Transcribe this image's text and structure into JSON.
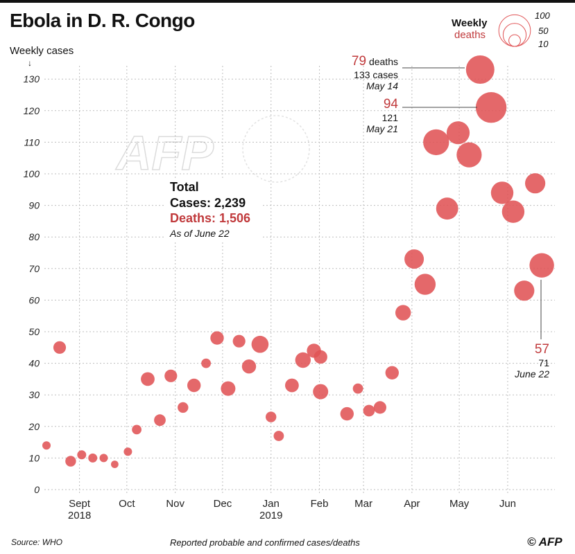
{
  "title": "Ebola in D. R. Congo",
  "legend": {
    "title_line1": "Weekly",
    "title_line2": "deaths",
    "sizes": [
      "100",
      "50",
      "10"
    ],
    "bubble_color": "#e05355"
  },
  "totals": {
    "heading": "Total",
    "cases": "Cases: 2,239",
    "deaths": "Deaths: 1,506",
    "asof": "As of June 22"
  },
  "annotations": {
    "may14": {
      "big": "79",
      "big_suffix": " deaths",
      "cases": "133 cases",
      "date": "May 14"
    },
    "may21": {
      "big": "94",
      "cases": "121",
      "date": "May 21"
    },
    "june22": {
      "big": "57",
      "cases": "71",
      "date": "June 22"
    }
  },
  "footer": {
    "source": "Source: WHO",
    "note": "Reported probable and confirmed cases/deaths",
    "logo": "© AFP"
  },
  "watermark": "AFP",
  "chart_data": {
    "type": "scatter",
    "ylabel": "Weekly cases",
    "ylim": [
      0,
      130
    ],
    "yticks": [
      0,
      10,
      20,
      30,
      40,
      50,
      60,
      70,
      80,
      90,
      100,
      110,
      120,
      130
    ],
    "grid": true,
    "x_ticks": [
      {
        "label": "Sept",
        "sub": "2018",
        "week": 3
      },
      {
        "label": "Oct",
        "sub": "",
        "week": 7.3
      },
      {
        "label": "Nov",
        "sub": "",
        "week": 11.7
      },
      {
        "label": "Dec",
        "sub": "",
        "week": 16
      },
      {
        "label": "Jan",
        "sub": "2019",
        "week": 20.4
      },
      {
        "label": "Feb",
        "sub": "",
        "week": 24.8
      },
      {
        "label": "Mar",
        "sub": "",
        "week": 28.8
      },
      {
        "label": "Apr",
        "sub": "",
        "week": 33.2
      },
      {
        "label": "May",
        "sub": "",
        "week": 37.5
      },
      {
        "label": "Jun",
        "sub": "",
        "week": 41.9
      }
    ],
    "points": [
      {
        "week": 0,
        "cases": 14,
        "deaths": 4
      },
      {
        "week": 1.2,
        "cases": 45,
        "deaths": 12
      },
      {
        "week": 2.2,
        "cases": 9,
        "deaths": 8
      },
      {
        "week": 3.2,
        "cases": 11,
        "deaths": 5
      },
      {
        "week": 4.2,
        "cases": 10,
        "deaths": 5
      },
      {
        "week": 5.2,
        "cases": 10,
        "deaths": 4
      },
      {
        "week": 6.2,
        "cases": 8,
        "deaths": 3
      },
      {
        "week": 7.4,
        "cases": 12,
        "deaths": 4
      },
      {
        "week": 8.2,
        "cases": 19,
        "deaths": 6
      },
      {
        "week": 9.2,
        "cases": 35,
        "deaths": 15
      },
      {
        "week": 10.3,
        "cases": 22,
        "deaths": 10
      },
      {
        "week": 11.3,
        "cases": 36,
        "deaths": 12
      },
      {
        "week": 12.4,
        "cases": 26,
        "deaths": 8
      },
      {
        "week": 13.4,
        "cases": 33,
        "deaths": 14
      },
      {
        "week": 14.5,
        "cases": 40,
        "deaths": 6
      },
      {
        "week": 15.5,
        "cases": 48,
        "deaths": 14
      },
      {
        "week": 16.5,
        "cases": 32,
        "deaths": 17
      },
      {
        "week": 17.5,
        "cases": 47,
        "deaths": 12
      },
      {
        "week": 18.4,
        "cases": 39,
        "deaths": 16
      },
      {
        "week": 19.4,
        "cases": 46,
        "deaths": 25
      },
      {
        "week": 20.4,
        "cases": 23,
        "deaths": 8
      },
      {
        "week": 21.1,
        "cases": 17,
        "deaths": 7
      },
      {
        "week": 22.3,
        "cases": 33,
        "deaths": 15
      },
      {
        "week": 23.3,
        "cases": 41,
        "deaths": 20
      },
      {
        "week": 24.3,
        "cases": 44,
        "deaths": 16
      },
      {
        "week": 24.9,
        "cases": 42,
        "deaths": 14
      },
      {
        "week": 24.9,
        "cases": 31,
        "deaths": 19
      },
      {
        "week": 27.3,
        "cases": 24,
        "deaths": 14
      },
      {
        "week": 28.3,
        "cases": 32,
        "deaths": 7
      },
      {
        "week": 29.3,
        "cases": 25,
        "deaths": 10
      },
      {
        "week": 30.3,
        "cases": 26,
        "deaths": 12
      },
      {
        "week": 31.4,
        "cases": 37,
        "deaths": 14
      },
      {
        "week": 32.4,
        "cases": 56,
        "deaths": 20
      },
      {
        "week": 33.4,
        "cases": 73,
        "deaths": 34
      },
      {
        "week": 34.4,
        "cases": 65,
        "deaths": 41
      },
      {
        "week": 35.4,
        "cases": 110,
        "deaths": 65
      },
      {
        "week": 36.4,
        "cases": 89,
        "deaths": 45
      },
      {
        "week": 37.4,
        "cases": 113,
        "deaths": 50
      },
      {
        "week": 38.4,
        "cases": 106,
        "deaths": 60
      },
      {
        "week": 39.4,
        "cases": 133,
        "deaths": 79
      },
      {
        "week": 40.4,
        "cases": 121,
        "deaths": 94
      },
      {
        "week": 41.4,
        "cases": 94,
        "deaths": 47
      },
      {
        "week": 42.4,
        "cases": 88,
        "deaths": 47
      },
      {
        "week": 43.4,
        "cases": 63,
        "deaths": 37
      },
      {
        "week": 44.4,
        "cases": 97,
        "deaths": 37
      },
      {
        "week": 45.0,
        "cases": 71,
        "deaths": 57
      }
    ]
  }
}
